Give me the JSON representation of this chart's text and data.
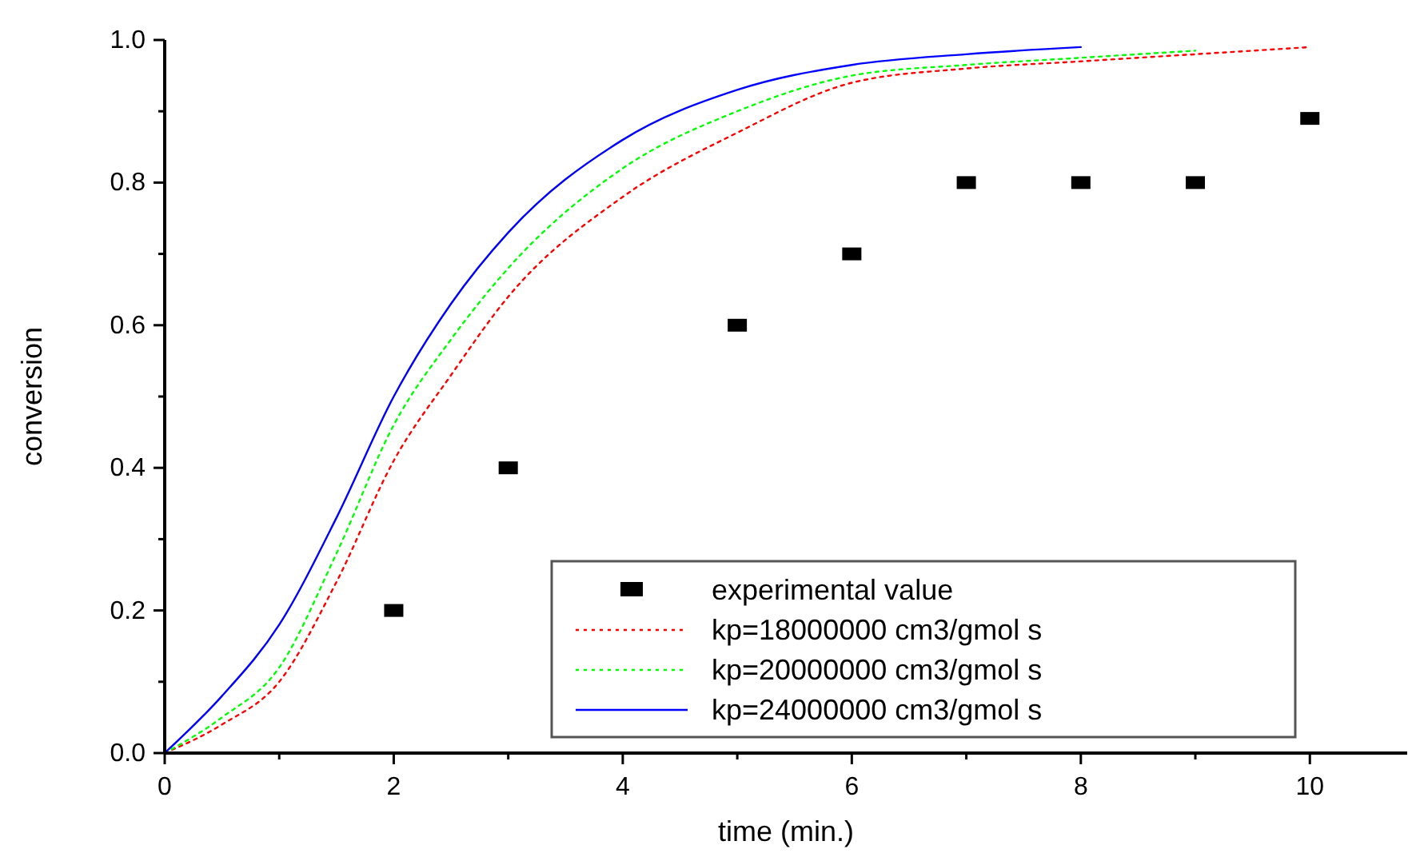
{
  "chart_data": {
    "type": "line",
    "xlabel": "time (min.)",
    "ylabel": "conversion",
    "xlim": [
      0,
      10.85
    ],
    "ylim": [
      0,
      1.0
    ],
    "xticks": [
      0,
      {
        "value": 1,
        "label": null
      },
      2,
      {
        "value": 3,
        "label": null
      },
      4,
      {
        "value": 5,
        "label": null
      },
      6,
      {
        "value": 7,
        "label": null
      },
      8,
      {
        "value": 9,
        "label": null
      },
      10
    ],
    "yticks": [
      "0.0",
      {
        "value": 0.1,
        "label": null
      },
      0.2,
      {
        "value": 0.3,
        "label": null
      },
      0.4,
      {
        "value": 0.5,
        "label": null
      },
      0.6,
      {
        "value": 0.7,
        "label": null
      },
      0.8,
      {
        "value": 0.9,
        "label": null
      },
      "1.0"
    ],
    "grid": false,
    "legend": "bottom right",
    "series": [
      {
        "name": "experimental value",
        "type": "scatter",
        "marker": "square",
        "color": "#000000",
        "x": [
          2,
          3,
          5,
          6,
          7,
          8,
          9,
          10
        ],
        "values": [
          0.2,
          0.4,
          0.6,
          0.7,
          0.8,
          0.8,
          0.8,
          0.89
        ]
      },
      {
        "name": "kp=18000000 cm3/gmol s",
        "color": "#ff0000",
        "line_style": "dotted",
        "marker": "none",
        "x": [
          0,
          0.5,
          1,
          1.5,
          2,
          2.5,
          3,
          4,
          5,
          6,
          7,
          8,
          9,
          10
        ],
        "values": [
          0,
          0.04,
          0.1,
          0.24,
          0.41,
          0.53,
          0.64,
          0.78,
          0.87,
          0.94,
          0.96,
          0.97,
          0.98,
          0.99
        ]
      },
      {
        "name": "kp=20000000 cm3/gmol s",
        "color": "#00ff00",
        "line_style": "dotted",
        "marker": "none",
        "x": [
          0,
          0.5,
          1,
          1.5,
          2,
          2.5,
          3,
          4,
          5,
          6,
          7,
          8,
          9
        ],
        "values": [
          0,
          0.05,
          0.12,
          0.28,
          0.46,
          0.58,
          0.68,
          0.82,
          0.9,
          0.95,
          0.965,
          0.975,
          0.985
        ]
      },
      {
        "name": "kp=24000000 cm3/gmol s",
        "color": "#0000ff",
        "line_style": "solid",
        "marker": "none",
        "x": [
          0,
          0.5,
          1,
          1.5,
          2,
          2.5,
          3,
          4,
          5,
          6,
          7,
          8
        ],
        "values": [
          0,
          0.08,
          0.18,
          0.33,
          0.5,
          0.63,
          0.73,
          0.86,
          0.93,
          0.965,
          0.98,
          0.99
        ]
      }
    ]
  }
}
